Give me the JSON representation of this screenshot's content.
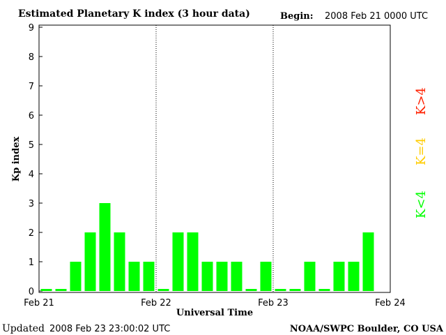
{
  "chart_data": {
    "type": "bar",
    "title": "Estimated Planetary K index (3 hour data)",
    "begin_label": "Begin:",
    "begin_value": "2008 Feb 21 0000 UTC",
    "xlabel": "Universal Time",
    "ylabel": "Kp index",
    "ylim": [
      0,
      9
    ],
    "y_ticks": [
      "0",
      "1",
      "2",
      "3",
      "4",
      "5",
      "6",
      "7",
      "8",
      "9"
    ],
    "x_ticks": [
      "Feb 21",
      "Feb 22",
      "Feb 23",
      "Feb 24"
    ],
    "values": [
      0,
      0,
      1,
      2,
      3,
      2,
      1,
      1,
      0,
      2,
      2,
      1,
      1,
      1,
      0,
      1,
      0,
      0,
      1,
      0,
      1,
      1,
      2
    ],
    "bars_per_day": 8,
    "days": 3,
    "grid": "day separators (dotted)",
    "legend": [
      {
        "label": "K>4",
        "color": "#ff2000"
      },
      {
        "label": "K=4",
        "color": "#ffcc00"
      },
      {
        "label": "K<4",
        "color": "#00ff00"
      }
    ],
    "legend_placement": "right",
    "bar_color": "#00ff00"
  },
  "footer": {
    "updated_label": "Updated",
    "updated_value": "2008 Feb 23 23:00:02 UTC",
    "source": "NOAA/SWPC Boulder, CO USA"
  }
}
